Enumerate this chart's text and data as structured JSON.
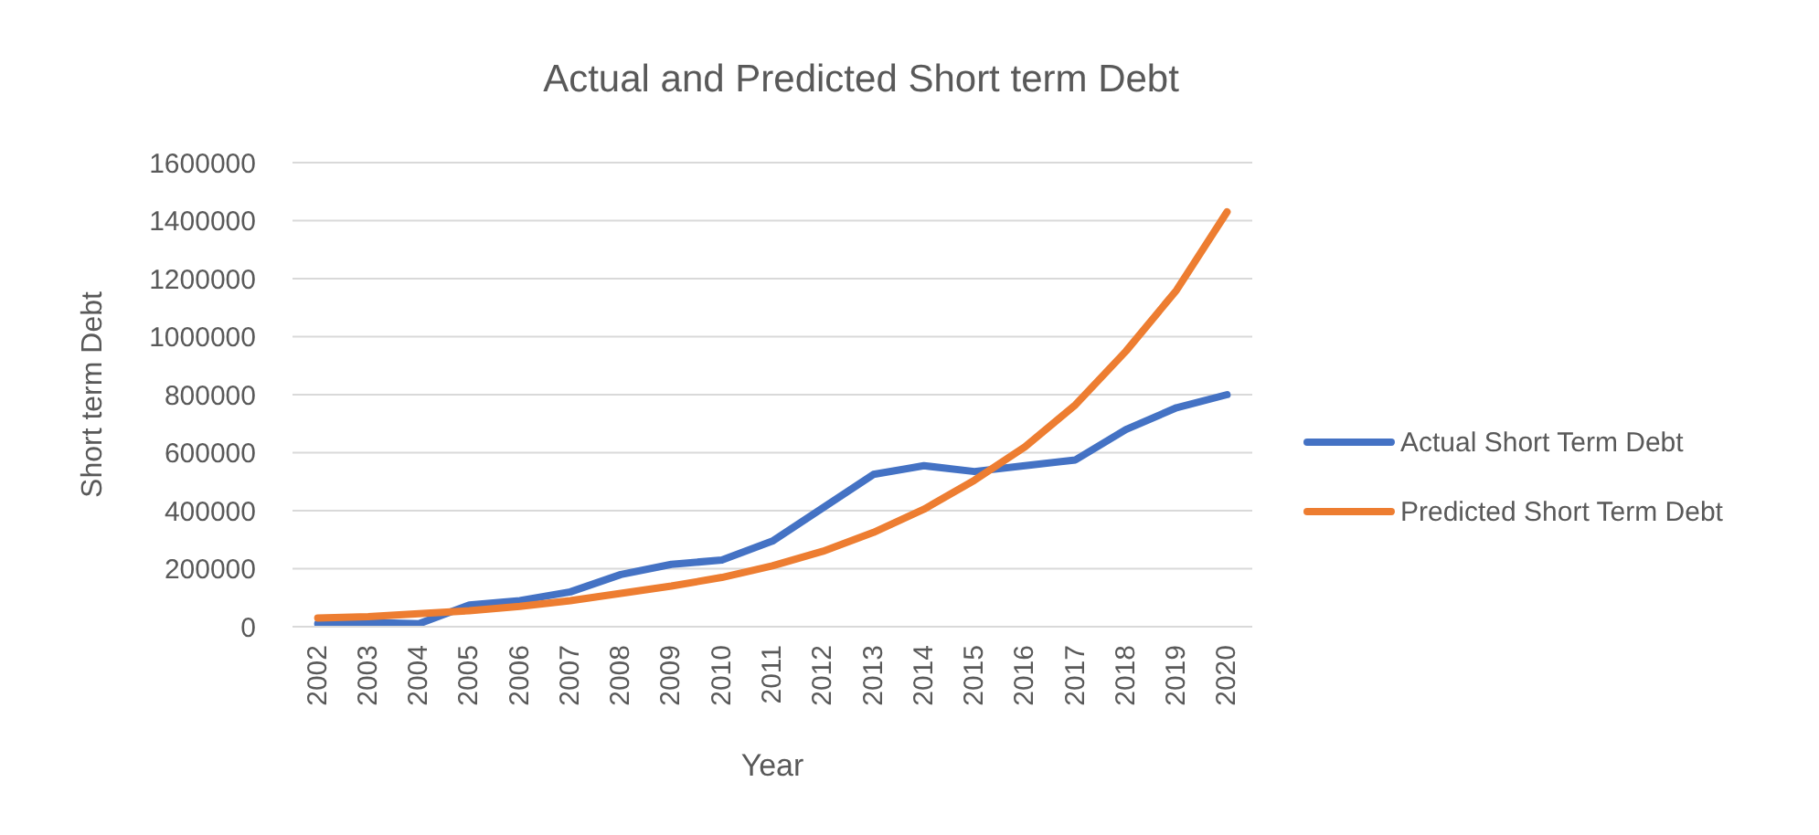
{
  "chart_data": {
    "type": "line",
    "title": "Actual and Predicted Short term Debt",
    "xlabel": "Year",
    "ylabel": "Short term Debt",
    "categories": [
      "2002",
      "2003",
      "2004",
      "2005",
      "2006",
      "2007",
      "2008",
      "2009",
      "2010",
      "2011",
      "2012",
      "2013",
      "2014",
      "2015",
      "2016",
      "2017",
      "2018",
      "2019",
      "2020"
    ],
    "series": [
      {
        "name": "Actual Short Term Debt",
        "color": "#4472c4",
        "values": [
          10000,
          15000,
          10000,
          75000,
          90000,
          120000,
          180000,
          215000,
          230000,
          295000,
          410000,
          525000,
          555000,
          535000,
          555000,
          575000,
          680000,
          755000,
          800000
        ]
      },
      {
        "name": "Predicted Short Term Debt",
        "color": "#ed7d31",
        "values": [
          30000,
          35000,
          45000,
          55000,
          70000,
          90000,
          115000,
          140000,
          170000,
          210000,
          260000,
          325000,
          405000,
          505000,
          620000,
          765000,
          950000,
          1160000,
          1430000
        ]
      }
    ],
    "ylim": [
      0,
      1600000
    ],
    "yticks": [
      0,
      200000,
      400000,
      600000,
      800000,
      1000000,
      1200000,
      1400000,
      1600000
    ],
    "grid": "y",
    "legend": "right",
    "marker": "none",
    "line_style": "solid"
  }
}
